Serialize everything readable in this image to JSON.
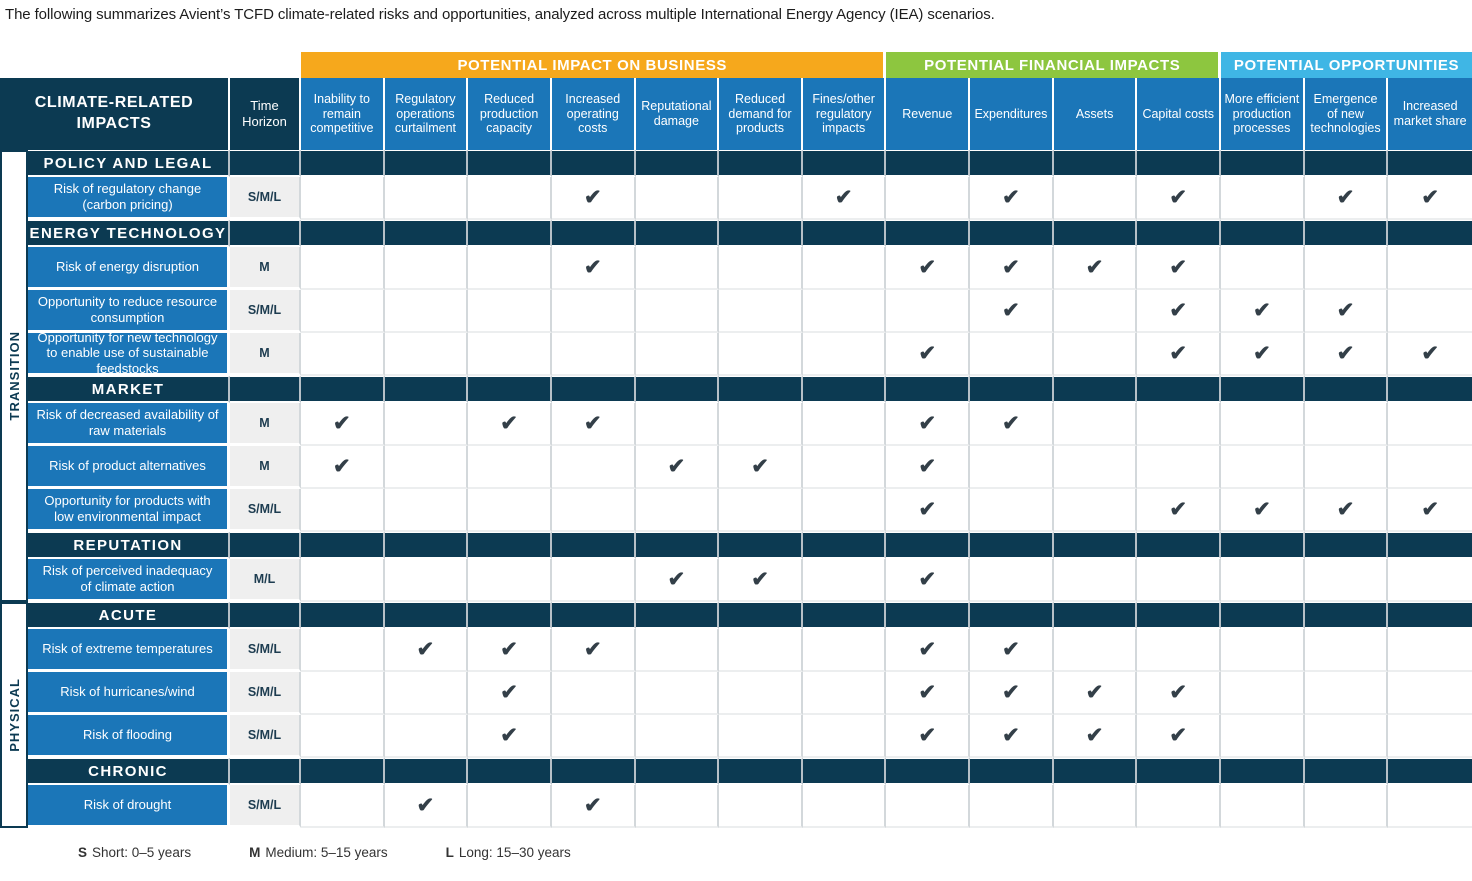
{
  "intro": "The following summarizes Avient’s TCFD climate-related risks and opportunities, analyzed across multiple International Energy Agency (IEA) scenarios.",
  "colors": {
    "navy": "#0c3a52",
    "row_blue": "#1b76b8",
    "business_orange": "#f6a81c",
    "financial_green": "#8dc63f",
    "opportunities_blue": "#3fb6e5",
    "time_gray": "#efefef",
    "check": "#333f48"
  },
  "groups": [
    {
      "label": "POTENTIAL IMPACT ON BUSINESS",
      "color": "#f6a81c",
      "span": 7
    },
    {
      "label": "POTENTIAL FINANCIAL IMPACTS",
      "color": "#8dc63f",
      "span": 4
    },
    {
      "label": "POTENTIAL OPPORTUNITIES",
      "color": "#3fb6e5",
      "span": 3
    }
  ],
  "header": {
    "impacts_label": "CLIMATE-RELATED IMPACTS",
    "time_label": "Time Horizon"
  },
  "columns": [
    "Inability to remain competitive",
    "Regulatory operations curtailment",
    "Reduced production capacity",
    "Increased operating costs",
    "Reputational damage",
    "Reduced demand for products",
    "Fines/other regulatory impacts",
    "Revenue",
    "Expenditures",
    "Assets",
    "Capital costs",
    "More efficient production processes",
    "Emergence of new technologies",
    "Increased market share"
  ],
  "side_labels": [
    {
      "label": "TRANSITION",
      "zone": "transition"
    },
    {
      "label": "PHYSICAL",
      "zone": "physical"
    }
  ],
  "checkmark": "✔",
  "rows": [
    {
      "type": "section",
      "zone": "transition",
      "label": "POLICY AND LEGAL"
    },
    {
      "type": "data",
      "zone": "transition",
      "label": "Risk of regulatory change (carbon pricing)",
      "time": "S/M/L",
      "checks": [
        3,
        6,
        8,
        10,
        12,
        13
      ]
    },
    {
      "type": "section",
      "zone": "transition",
      "label": "ENERGY TECHNOLOGY"
    },
    {
      "type": "data",
      "zone": "transition",
      "label": "Risk of energy disruption",
      "time": "M",
      "checks": [
        3,
        7,
        8,
        9,
        10
      ]
    },
    {
      "type": "data",
      "zone": "transition",
      "label": "Opportunity to reduce resource consumption",
      "time": "S/M/L",
      "checks": [
        8,
        10,
        11,
        12
      ]
    },
    {
      "type": "data",
      "zone": "transition",
      "label": "Opportunity for new technology to enable use of sustainable feedstocks",
      "time": "M",
      "checks": [
        7,
        10,
        11,
        12,
        13
      ]
    },
    {
      "type": "section",
      "zone": "transition",
      "label": "MARKET"
    },
    {
      "type": "data",
      "zone": "transition",
      "label": "Risk of decreased availability of raw materials",
      "time": "M",
      "checks": [
        0,
        2,
        3,
        7,
        8
      ]
    },
    {
      "type": "data",
      "zone": "transition",
      "label": "Risk of product alternatives",
      "time": "M",
      "checks": [
        0,
        4,
        5,
        7
      ]
    },
    {
      "type": "data",
      "zone": "transition",
      "label": "Opportunity for products with low environmental impact",
      "time": "S/M/L",
      "checks": [
        7,
        10,
        11,
        12,
        13
      ]
    },
    {
      "type": "section",
      "zone": "transition",
      "label": "REPUTATION"
    },
    {
      "type": "data",
      "zone": "transition",
      "label": "Risk of perceived inadequacy of climate action",
      "time": "M/L",
      "checks": [
        4,
        5,
        7
      ]
    },
    {
      "type": "section",
      "zone": "physical",
      "label": "ACUTE"
    },
    {
      "type": "data",
      "zone": "physical",
      "label": "Risk of extreme temperatures",
      "time": "S/M/L",
      "checks": [
        1,
        2,
        3,
        7,
        8
      ]
    },
    {
      "type": "data",
      "zone": "physical",
      "label": "Risk of hurricanes/wind",
      "time": "S/M/L",
      "checks": [
        2,
        7,
        8,
        9,
        10
      ]
    },
    {
      "type": "data",
      "zone": "physical",
      "label": "Risk of flooding",
      "time": "S/M/L",
      "checks": [
        2,
        7,
        8,
        9,
        10
      ]
    },
    {
      "type": "section",
      "zone": "physical",
      "label": "CHRONIC"
    },
    {
      "type": "data",
      "zone": "physical",
      "label": "Risk of drought",
      "time": "S/M/L",
      "checks": [
        1,
        3
      ]
    }
  ],
  "legend": [
    {
      "key": "S",
      "text": "Short: 0–5 years"
    },
    {
      "key": "M",
      "text": "Medium: 5–15 years"
    },
    {
      "key": "L",
      "text": "Long: 15–30 years"
    }
  ]
}
